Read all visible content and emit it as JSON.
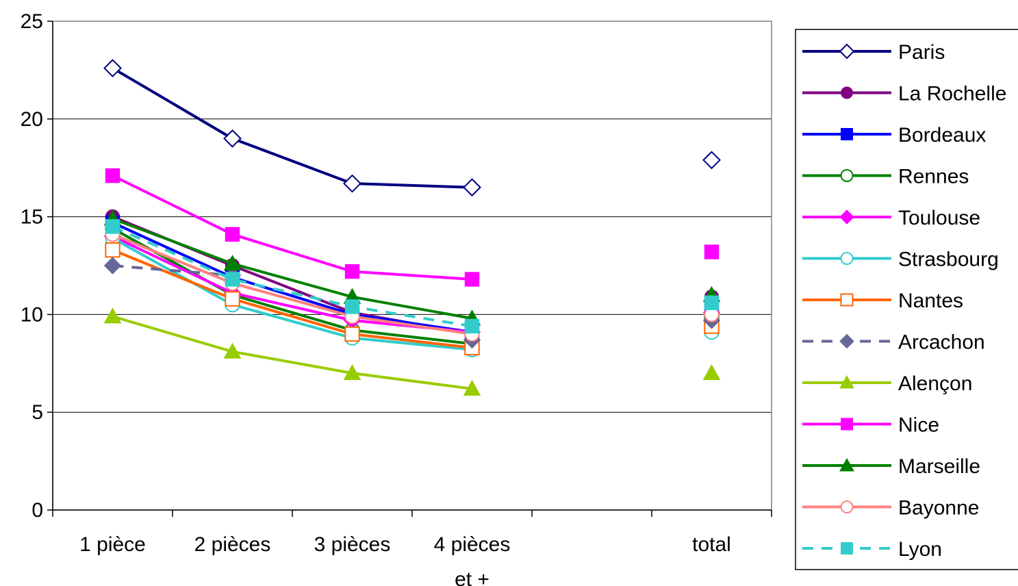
{
  "chart_data": {
    "type": "line",
    "title": "",
    "xlabel": "",
    "ylabel": "",
    "ylim": [
      0,
      25
    ],
    "yticks": [
      0,
      5,
      10,
      15,
      20,
      25
    ],
    "categories": [
      "1 pièce",
      "2 pièces",
      "3 pièces",
      "4 pièces et +",
      "",
      "total"
    ],
    "grid": "horizontal",
    "legend": "right",
    "series": [
      {
        "name": "Paris",
        "color": "#000080",
        "marker": "diamond-open",
        "dash": false,
        "values": [
          22.6,
          19.0,
          16.7,
          16.5,
          null,
          17.9
        ]
      },
      {
        "name": "La Rochelle",
        "color": "#800080",
        "marker": "circle-filled",
        "dash": false,
        "values": [
          15.0,
          12.5,
          10.1,
          9.0,
          null,
          10.9
        ]
      },
      {
        "name": "Bordeaux",
        "color": "#0000FF",
        "marker": "square-filled",
        "dash": false,
        "values": [
          14.7,
          11.9,
          10.0,
          9.1,
          null,
          10.4
        ]
      },
      {
        "name": "Rennes",
        "color": "#008000",
        "marker": "circle-open",
        "dash": false,
        "values": [
          14.4,
          11.0,
          9.2,
          8.5,
          null,
          9.9
        ]
      },
      {
        "name": "Toulouse",
        "color": "#FF00FF",
        "marker": "diamond-filled",
        "dash": false,
        "values": [
          14.0,
          11.1,
          9.7,
          9.1,
          null,
          10.1
        ]
      },
      {
        "name": "Strasbourg",
        "color": "#33CCCC",
        "marker": "circle-open",
        "dash": false,
        "values": [
          13.9,
          10.5,
          8.8,
          8.2,
          null,
          9.1
        ]
      },
      {
        "name": "Nantes",
        "color": "#FF6600",
        "marker": "square-open",
        "dash": false,
        "values": [
          13.3,
          10.8,
          9.0,
          8.3,
          null,
          9.4
        ]
      },
      {
        "name": "Arcachon",
        "color": "#666699",
        "marker": "diamond-filled",
        "dash": true,
        "values": [
          12.5,
          12.0,
          null,
          8.7,
          null,
          9.7
        ]
      },
      {
        "name": "Alençon",
        "color": "#99CC00",
        "marker": "triangle-filled",
        "dash": false,
        "values": [
          9.9,
          8.1,
          7.0,
          6.2,
          null,
          7.0
        ]
      },
      {
        "name": "Nice",
        "color": "#FF00FF",
        "marker": "square-filled",
        "dash": false,
        "values": [
          17.1,
          14.1,
          12.2,
          11.8,
          null,
          13.2
        ]
      },
      {
        "name": "Marseille",
        "color": "#008000",
        "marker": "triangle-filled",
        "dash": false,
        "values": [
          14.9,
          12.6,
          10.9,
          9.8,
          null,
          11.0
        ]
      },
      {
        "name": "Bayonne",
        "color": "#FF8080",
        "marker": "circle-open",
        "dash": false,
        "values": [
          14.1,
          11.6,
          9.9,
          9.0,
          null,
          10.0
        ]
      },
      {
        "name": "Lyon",
        "color": "#33CCCC",
        "marker": "square-filled",
        "dash": true,
        "values": [
          14.5,
          11.8,
          10.4,
          9.4,
          null,
          10.6
        ]
      }
    ]
  }
}
